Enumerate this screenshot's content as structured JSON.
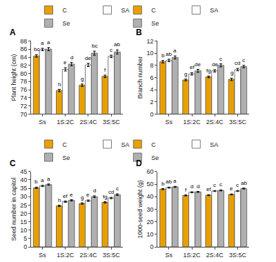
{
  "chart_data": [
    {
      "type": "bar",
      "title": "A",
      "ylabel": "Plant height (cm)",
      "categories": [
        "Ss",
        "1S:2C",
        "2S:4C",
        "3S:5C"
      ],
      "series": [
        {
          "name": "C",
          "color": "#E8A000",
          "values": [
            84.3,
            75.8,
            77.1,
            79.3
          ],
          "error": [
            0.3,
            0.3,
            0.3,
            0.3
          ],
          "labels": [
            "bc",
            "h",
            "g",
            "f"
          ]
        },
        {
          "name": "SA",
          "color": "#FFFFFF",
          "values": [
            85.9,
            81.0,
            82.1,
            84.2
          ],
          "error": [
            0.3,
            0.4,
            0.4,
            0.3
          ],
          "labels": [
            "a",
            "e",
            "de",
            "c"
          ]
        },
        {
          "name": "Se",
          "color": "#B0B0B0",
          "values": [
            86.0,
            82.3,
            85.0,
            85.3
          ],
          "error": [
            0.4,
            0.4,
            0.5,
            0.5
          ],
          "labels": [
            "a",
            "d",
            "bc",
            "ab"
          ]
        }
      ],
      "ylim": [
        70,
        88
      ],
      "yticks": [
        70,
        72,
        74,
        76,
        78,
        80,
        82,
        84,
        86,
        88
      ],
      "grid": false,
      "legend": "top"
    },
    {
      "type": "bar",
      "title": "B",
      "ylabel": "Branch number",
      "categories": [
        "Ss",
        "1S:2C",
        "2S:4C",
        "3S:5C"
      ],
      "series": [
        {
          "name": "C",
          "color": "#E8A000",
          "values": [
            8.6,
            5.6,
            6.1,
            5.7
          ],
          "error": [
            0.2,
            0.15,
            0.15,
            0.2
          ],
          "labels": [
            "b",
            "g",
            "fg",
            "g"
          ]
        },
        {
          "name": "SA",
          "color": "#FFFFFF",
          "values": [
            8.8,
            6.6,
            7.1,
            7.3
          ],
          "error": [
            0.2,
            0.2,
            0.2,
            0.2
          ],
          "labels": [
            "ab",
            "ef",
            "de",
            "cd"
          ]
        },
        {
          "name": "Se",
          "color": "#B0B0B0",
          "values": [
            9.3,
            7.1,
            8.0,
            7.8
          ],
          "error": [
            0.25,
            0.25,
            0.25,
            0.2
          ],
          "labels": [
            "a",
            "de",
            "c",
            "c"
          ]
        }
      ],
      "ylim": [
        0,
        12
      ],
      "yticks": [
        0,
        2,
        4,
        6,
        8,
        10,
        12
      ],
      "grid": false,
      "legend": "top"
    },
    {
      "type": "bar",
      "title": "C",
      "ylabel": "Seed number in capitol",
      "categories": [
        "Ss",
        "1S:2C",
        "2S:4C",
        "3S:5C"
      ],
      "series": [
        {
          "name": "C",
          "color": "#E8A000",
          "values": [
            35.3,
            24.5,
            25.9,
            26.6
          ],
          "error": [
            0.4,
            0.4,
            0.4,
            0.4
          ],
          "labels": [
            "b",
            "h",
            "g",
            "fg"
          ]
        },
        {
          "name": "SA",
          "color": "#FFFFFF",
          "values": [
            36.4,
            27.0,
            27.6,
            29.2
          ],
          "error": [
            0.4,
            0.4,
            0.4,
            0.4
          ],
          "labels": [
            "a",
            "ef",
            "e",
            "cd"
          ]
        },
        {
          "name": "Se",
          "color": "#B0B0B0",
          "values": [
            37.2,
            27.8,
            30.0,
            31.2
          ],
          "error": [
            0.4,
            0.4,
            0.5,
            0.5
          ],
          "labels": [
            "a",
            "e",
            "d",
            "c"
          ]
        }
      ],
      "ylim": [
        0,
        45
      ],
      "yticks": [
        0,
        5,
        10,
        15,
        20,
        25,
        30,
        35,
        40,
        45
      ],
      "grid": false,
      "legend": "top"
    },
    {
      "type": "bar",
      "title": "D",
      "ylabel": "1000-seed weight (g)",
      "categories": [
        "Ss",
        "1S:2C",
        "2S:4C",
        "3S:5C"
      ],
      "series": [
        {
          "name": "C",
          "color": "#E8A000",
          "values": [
            46.0,
            41.0,
            41.2,
            41.8
          ],
          "error": [
            0.4,
            0.4,
            0.4,
            0.4
          ],
          "labels": [
            "b",
            "f",
            "ef",
            "e"
          ]
        },
        {
          "name": "SA",
          "color": "#FFFFFF",
          "values": [
            47.2,
            43.5,
            44.5,
            44.5
          ],
          "error": [
            0.4,
            0.4,
            0.4,
            0.4
          ],
          "labels": [
            "ab",
            "d",
            "c",
            "c"
          ]
        },
        {
          "name": "Se",
          "color": "#B0B0B0",
          "values": [
            47.8,
            43.8,
            45.0,
            46.5
          ],
          "error": [
            0.4,
            0.4,
            0.4,
            0.4
          ],
          "labels": [
            "a",
            "d",
            "c",
            "ab"
          ]
        }
      ],
      "ylim": [
        0,
        60
      ],
      "yticks": [
        0,
        10,
        20,
        30,
        40,
        50,
        60
      ],
      "grid": false,
      "legend": "top"
    }
  ]
}
